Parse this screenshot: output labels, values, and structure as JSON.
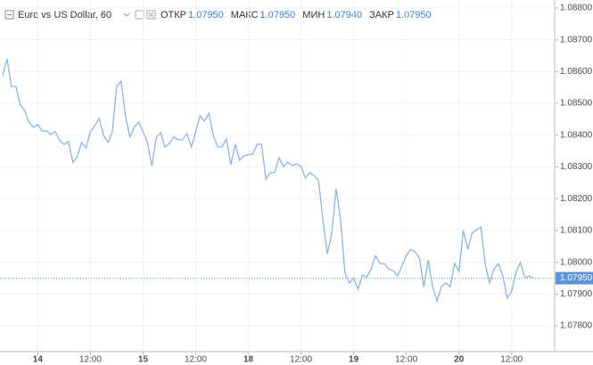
{
  "chart_data": {
    "type": "line",
    "title": "Euro vs US Dollar, 60",
    "ohlc": [
      {
        "label": "ОТКР",
        "value": "1.07950"
      },
      {
        "label": "МАКС",
        "value": "1.07950"
      },
      {
        "label": "МИН",
        "value": "1.07940"
      },
      {
        "label": "ЗАКР",
        "value": "1.07950"
      }
    ],
    "categories": [
      null,
      null,
      null,
      null,
      null,
      null,
      null,
      null,
      "14",
      null,
      null,
      null,
      null,
      null,
      null,
      null,
      null,
      null,
      null,
      null,
      "12:00",
      null,
      null,
      null,
      null,
      null,
      null,
      null,
      null,
      null,
      null,
      null,
      "15",
      null,
      null,
      null,
      null,
      null,
      null,
      null,
      null,
      null,
      null,
      null,
      "12:00",
      null,
      null,
      null,
      null,
      null,
      null,
      null,
      null,
      null,
      null,
      null,
      "18",
      null,
      null,
      null,
      null,
      null,
      null,
      null,
      null,
      null,
      null,
      null,
      "12:00",
      null,
      null,
      null,
      null,
      null,
      null,
      null,
      null,
      null,
      null,
      null,
      "19",
      null,
      null,
      null,
      null,
      null,
      null,
      null,
      null,
      null,
      null,
      null,
      "12:00",
      null,
      null,
      null,
      null,
      null,
      null,
      null,
      null,
      null,
      null,
      null,
      "20",
      null,
      null,
      null,
      null,
      null,
      null,
      null,
      null,
      null,
      null,
      null,
      "12:00",
      null,
      null,
      null,
      null,
      null
    ],
    "series": [
      {
        "color": "#8fb3e0",
        "values": [
          1.08587,
          1.0864,
          1.08553,
          1.08553,
          1.08495,
          1.08478,
          1.08441,
          1.08425,
          1.08433,
          1.08413,
          1.08413,
          1.08402,
          1.08411,
          1.08383,
          1.08371,
          1.0838,
          1.08315,
          1.08332,
          1.08377,
          1.0836,
          1.08411,
          1.0843,
          1.08453,
          1.08399,
          1.08377,
          1.08411,
          1.08553,
          1.0857,
          1.08458,
          1.08394,
          1.08425,
          1.08441,
          1.08411,
          1.08377,
          1.08304,
          1.08391,
          1.08408,
          1.08363,
          1.08374,
          1.08394,
          1.08385,
          1.08385,
          1.08405,
          1.08363,
          1.08411,
          1.08461,
          1.08444,
          1.08469,
          1.08399,
          1.08363,
          1.08363,
          1.08388,
          1.08307,
          1.08371,
          1.08321,
          1.08335,
          1.08338,
          1.08341,
          1.08371,
          1.08371,
          1.08262,
          1.08282,
          1.08282,
          1.08329,
          1.08301,
          1.08315,
          1.08304,
          1.0831,
          1.08301,
          1.08265,
          1.08282,
          1.08273,
          1.08257,
          1.08131,
          1.08027,
          1.08089,
          1.08231,
          1.08136,
          1.07968,
          1.07935,
          1.07951,
          1.07915,
          1.0796,
          1.07954,
          1.07979,
          1.08021,
          1.07996,
          1.07996,
          1.07979,
          1.07974,
          1.07957,
          1.07988,
          1.08021,
          1.08041,
          1.08033,
          1.08013,
          1.07923,
          1.08007,
          1.07923,
          1.07879,
          1.07923,
          1.07935,
          1.07923,
          1.07996,
          1.07971,
          1.081,
          1.08041,
          1.08091,
          1.08103,
          1.08111,
          1.07993,
          1.07935,
          1.07979,
          1.07996,
          1.07957,
          1.07887,
          1.07909,
          1.07968,
          1.07999,
          1.07951,
          1.07957,
          1.0795
        ]
      }
    ],
    "last_price": {
      "value": 1.0795,
      "label": "1.07950"
    },
    "ylim": [
      1.07719,
      1.08825
    ],
    "yticks": [
      {
        "value": 1.078,
        "label": "1.07800"
      },
      {
        "value": 1.079,
        "label": "1.07900"
      },
      {
        "value": 1.08,
        "label": "1.08000"
      },
      {
        "value": 1.081,
        "label": "1.08100"
      },
      {
        "value": 1.082,
        "label": "1.08200"
      },
      {
        "value": 1.083,
        "label": "1.08300"
      },
      {
        "value": 1.084,
        "label": "1.08400"
      },
      {
        "value": 1.085,
        "label": "1.08500"
      },
      {
        "value": 1.086,
        "label": "1.08600"
      },
      {
        "value": 1.087,
        "label": "1.08700"
      },
      {
        "value": 1.088,
        "label": "1.08800"
      }
    ]
  }
}
